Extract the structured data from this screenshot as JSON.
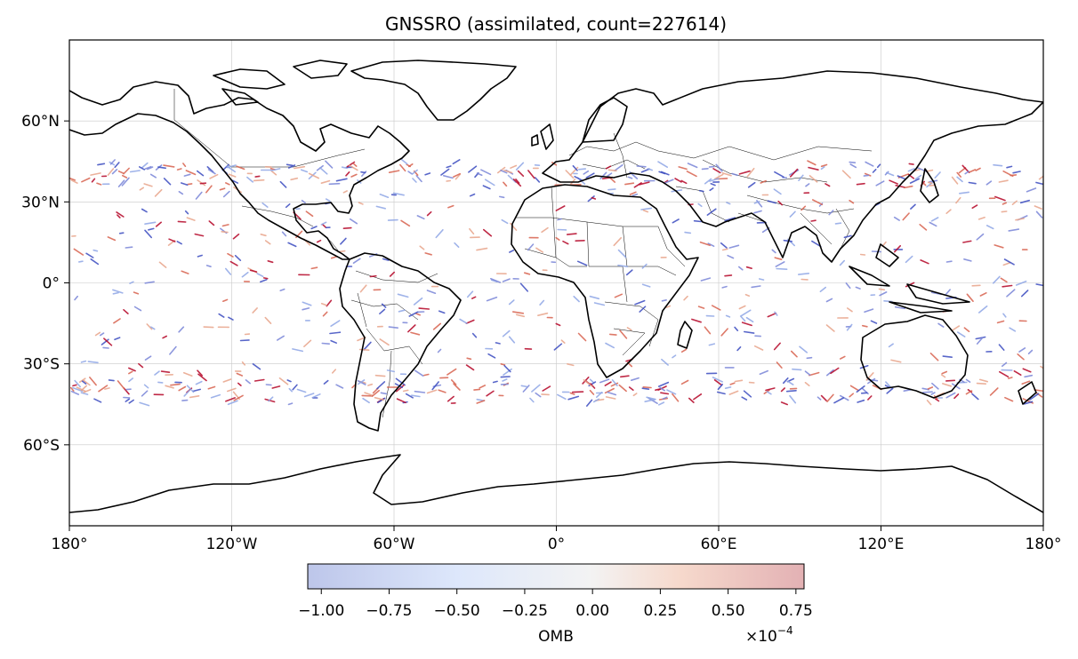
{
  "title": "GNSSRO (assimilated, count=227614)",
  "x_ticks": [
    "180°",
    "120°W",
    "60°W",
    "0°",
    "60°E",
    "120°E",
    "180°"
  ],
  "y_ticks": [
    "60°N",
    "30°N",
    "0°",
    "30°S",
    "60°S"
  ],
  "colorbar": {
    "label": "OMB",
    "multiplier_base": "×10",
    "multiplier_exp": "−4",
    "ticks": [
      "−1.00",
      "−0.75",
      "−0.50",
      "−0.25",
      "0.00",
      "0.25",
      "0.50",
      "0.75"
    ],
    "tick_values": [
      -1.0,
      -0.75,
      -0.5,
      -0.25,
      0.0,
      0.25,
      0.5,
      0.75
    ],
    "range": [
      -1.05,
      0.78
    ],
    "colormap": [
      "#bdc6ea",
      "#dde7fb",
      "#f3f3f3",
      "#f6d9cc",
      "#e3b1b4"
    ]
  },
  "chart_data": {
    "type": "scatter",
    "title": "GNSSRO (assimilated, count=227614)",
    "projection": "PlateCarree",
    "lon_range": [
      -180,
      180
    ],
    "lat_range": [
      -90,
      90
    ],
    "x_ticks_deg": [
      -180,
      -120,
      -60,
      0,
      60,
      120,
      180
    ],
    "y_ticks_deg": [
      60,
      30,
      0,
      -30,
      -60
    ],
    "observation_band_lat": [
      -45,
      45
    ],
    "count": 227614,
    "color_variable": "OMB",
    "grid": true,
    "point_colors": [
      "#3b4cc0",
      "#8fa6e6",
      "#e8a48a",
      "#b40426",
      "#d8624e",
      "#7a86d8"
    ]
  },
  "map_colors": {
    "coast": "#000000",
    "border": "#000000",
    "grid": "#c8c8c8"
  }
}
